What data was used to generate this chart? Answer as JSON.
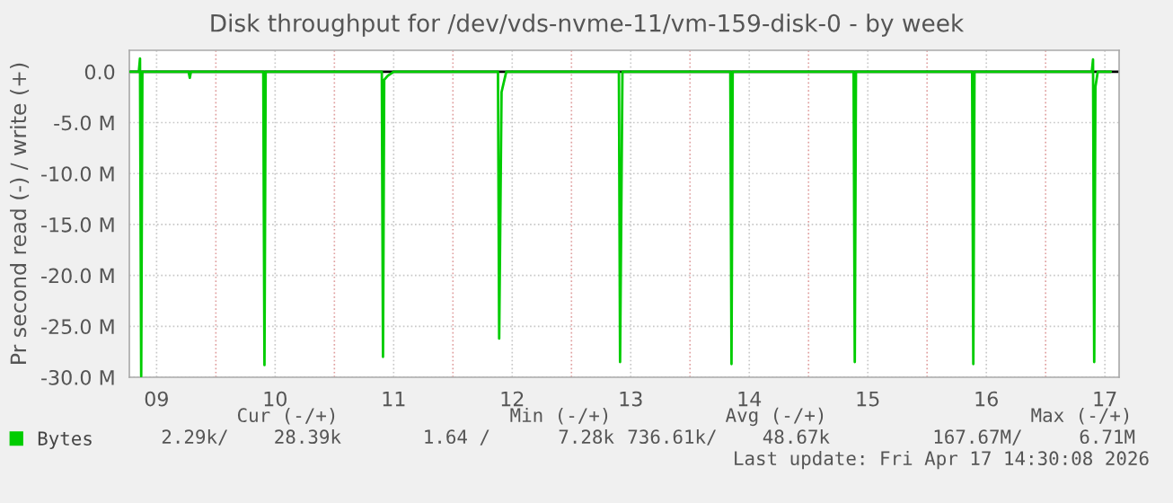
{
  "chart_data": {
    "type": "line",
    "title": "Disk throughput for /dev/vds-nvme-11/vm-159-disk-0 - by week",
    "ylabel": "Pr second read (-) / write (+)",
    "series": [
      {
        "name": "Bytes",
        "color": "#00cc00",
        "x": [
          8.77,
          8.85,
          8.86,
          8.87,
          8.88,
          9.0,
          9.27,
          9.28,
          9.29,
          9.89,
          9.9,
          9.91,
          9.92,
          10.89,
          10.9,
          10.91,
          10.92,
          10.95,
          11.0,
          11.87,
          11.88,
          11.89,
          11.91,
          11.95,
          12.0,
          12.89,
          12.9,
          12.91,
          12.93,
          13.83,
          13.84,
          13.85,
          13.86,
          14.0,
          14.87,
          14.88,
          14.89,
          14.9,
          15.87,
          15.88,
          15.89,
          15.9,
          16.88,
          16.89,
          16.9,
          16.91,
          16.92,
          16.94,
          17.05
        ],
        "values": [
          0,
          0,
          1300000,
          -29900000,
          0,
          0,
          0,
          -600000,
          0,
          0,
          0,
          -28800000,
          0,
          0,
          0,
          -28000000,
          -800000,
          -400000,
          0,
          0,
          0,
          -26200000,
          -2000000,
          0,
          0,
          0,
          0,
          -28500000,
          0,
          0,
          0,
          -28700000,
          0,
          0,
          0,
          0,
          -28500000,
          0,
          0,
          0,
          -28700000,
          0,
          0,
          0,
          1200000,
          -28500000,
          -1500000,
          0,
          0
        ]
      }
    ],
    "xlim": [
      8.77,
      17.12
    ],
    "xticks": [
      {
        "value": 9,
        "label": "09"
      },
      {
        "value": 9.5,
        "label": null
      },
      {
        "value": 10,
        "label": "10"
      },
      {
        "value": 10.5,
        "label": null
      },
      {
        "value": 11,
        "label": "11"
      },
      {
        "value": 11.5,
        "label": null
      },
      {
        "value": 12,
        "label": "12"
      },
      {
        "value": 12.5,
        "label": null
      },
      {
        "value": 13,
        "label": "13"
      },
      {
        "value": 13.5,
        "label": null
      },
      {
        "value": 14,
        "label": "14"
      },
      {
        "value": 14.5,
        "label": null
      },
      {
        "value": 15,
        "label": "15"
      },
      {
        "value": 15.5,
        "label": null
      },
      {
        "value": 16,
        "label": "16"
      },
      {
        "value": 16.5,
        "label": null
      },
      {
        "value": 17,
        "label": "17"
      }
    ],
    "ylim": [
      -30000000,
      2100000
    ],
    "yticks": [
      {
        "value": -30000000,
        "label": "-30.0 M"
      },
      {
        "value": -25000000,
        "label": "-25.0 M"
      },
      {
        "value": -20000000,
        "label": "-20.0 M"
      },
      {
        "value": -15000000,
        "label": "-15.0 M"
      },
      {
        "value": -10000000,
        "label": "-10.0 M"
      },
      {
        "value": -5000000,
        "label": "-5.0 M"
      },
      {
        "value": 0,
        "label": "0.0"
      }
    ],
    "ref_lines": [
      {
        "axis": "y",
        "value": 0,
        "color": "#000000"
      }
    ],
    "grid": true,
    "legend": "bottom left",
    "annotations": [
      "Cur (-/+)",
      "Min (-/+)",
      "Avg (-/+)",
      "Max (-/+)",
      "2.29k/    28.39k",
      "1.64 /      7.28k",
      "736.61k/    48.67k",
      "167.67M/     6.71M",
      "Last update: Fri Apr 17 14:30:08 2026"
    ]
  }
}
